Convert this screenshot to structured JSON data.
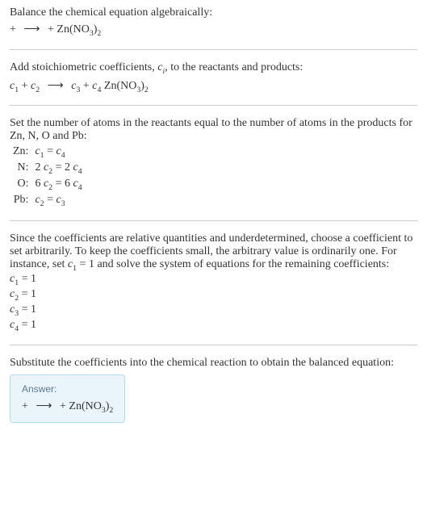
{
  "s1": {
    "title": "Balance the chemical equation algebraically:",
    "plus": " + ",
    "arrow": "⟶",
    "plus2": " + ",
    "zn": "Zn(NO",
    "sub3": "3",
    "paren": ")",
    "sub2": "2"
  },
  "s2": {
    "title_a": "Add stoichiometric coefficients, ",
    "ci": "c",
    "sub_i": "i",
    "title_b": ", to the reactants and products:",
    "c1": "c",
    "c1s": "1",
    "plus1": " + ",
    "c2": "c",
    "c2s": "2",
    "arrow": "⟶",
    "c3": "c",
    "c3s": "3",
    "plus3": " + ",
    "c4": "c",
    "c4s": "4",
    "sp": " ",
    "zn": "Zn(NO",
    "zn3": "3",
    "znp": ")",
    "zn2": "2"
  },
  "s3": {
    "title": "Set the number of atoms in the reactants equal to the number of atoms in the products for Zn, N, O and Pb:",
    "rows": {
      "zn": {
        "label": "Zn:",
        "c1": "c",
        "c1s": "1",
        "eq": " = ",
        "c4": "c",
        "c4s": "4"
      },
      "n": {
        "label": "N:",
        "two": "2 ",
        "c2": "c",
        "c2s": "2",
        "eq": " = ",
        "two_b": "2 ",
        "c4": "c",
        "c4s": "4"
      },
      "o": {
        "label": "O:",
        "six": "6 ",
        "c2": "c",
        "c2s": "2",
        "eq": " = ",
        "six_b": "6 ",
        "c4": "c",
        "c4s": "4"
      },
      "pb": {
        "label": "Pb:",
        "c2": "c",
        "c2s": "2",
        "eq": " = ",
        "c3": "c",
        "c3s": "3"
      }
    }
  },
  "s4": {
    "title_a": "Since the coefficients are relative quantities and underdetermined, choose a coefficient to set arbitrarily. To keep the coefficients small, the arbitrary value is ordinarily one. For instance, set ",
    "c1": "c",
    "c1s": "1",
    "title_b": " = 1 and solve the system of equations for the remaining coefficients:",
    "lines": {
      "l1": {
        "c": "c",
        "s": "1",
        "rhs": " = 1"
      },
      "l2": {
        "c": "c",
        "s": "2",
        "rhs": " = 1"
      },
      "l3": {
        "c": "c",
        "s": "3",
        "rhs": " = 1"
      },
      "l4": {
        "c": "c",
        "s": "4",
        "rhs": " = 1"
      }
    }
  },
  "s5": {
    "title": "Substitute the coefficients into the chemical reaction to obtain the balanced equation:"
  },
  "answer": {
    "label": "Answer:",
    "plus": " + ",
    "arrow": "⟶",
    "plus2": " + ",
    "zn": "Zn(NO",
    "zn3": "3",
    "znp": ")",
    "zn2": "2"
  }
}
